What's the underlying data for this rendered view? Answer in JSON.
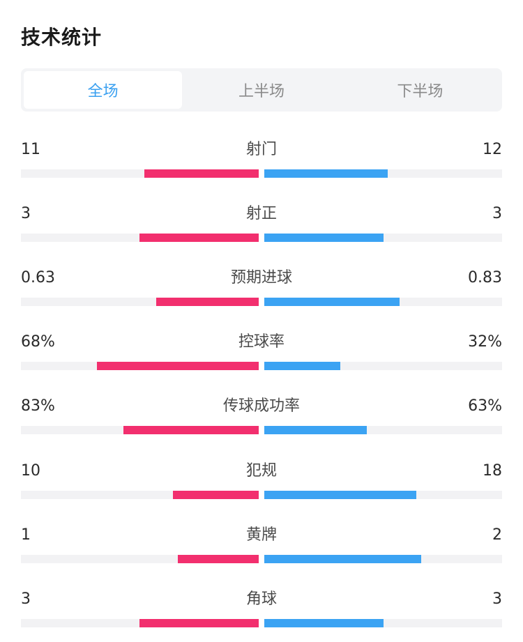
{
  "title": "技术统计",
  "tabs": [
    {
      "label": "全场",
      "active": true
    },
    {
      "label": "上半场",
      "active": false
    },
    {
      "label": "下半场",
      "active": false
    }
  ],
  "colors": {
    "home": "#f22f6e",
    "away": "#3ba3f3",
    "track": "#f2f2f4",
    "active_tab": "#3aa0f0"
  },
  "stats": [
    {
      "name": "射门",
      "home": "11",
      "away": "12",
      "home_fill": 0.48,
      "away_fill": 0.52
    },
    {
      "name": "射正",
      "home": "3",
      "away": "3",
      "home_fill": 0.5,
      "away_fill": 0.5
    },
    {
      "name": "预期进球",
      "home": "0.63",
      "away": "0.83",
      "home_fill": 0.43,
      "away_fill": 0.57
    },
    {
      "name": "控球率",
      "home": "68%",
      "away": "32%",
      "home_fill": 0.68,
      "away_fill": 0.32
    },
    {
      "name": "传球成功率",
      "home": "83%",
      "away": "63%",
      "home_fill": 0.57,
      "away_fill": 0.43
    },
    {
      "name": "犯规",
      "home": "10",
      "away": "18",
      "home_fill": 0.36,
      "away_fill": 0.64
    },
    {
      "name": "黄牌",
      "home": "1",
      "away": "2",
      "home_fill": 0.34,
      "away_fill": 0.66
    },
    {
      "name": "角球",
      "home": "3",
      "away": "3",
      "home_fill": 0.5,
      "away_fill": 0.5
    }
  ]
}
